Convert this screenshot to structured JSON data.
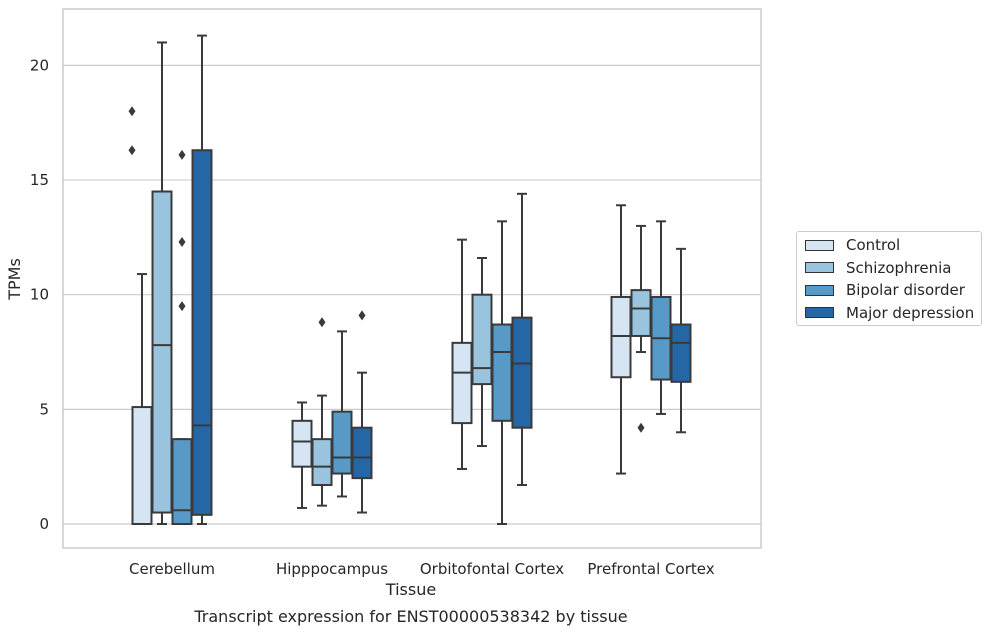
{
  "chart_data": {
    "type": "boxplot",
    "title": "Transcript expression for ENST00000538342 by tissue",
    "xlabel": "Tissue",
    "ylabel": "TPMs",
    "ylim": [
      -1,
      22.5
    ],
    "yticks": [
      0,
      5,
      10,
      15,
      20
    ],
    "grid": true,
    "legend_position": "right",
    "categories": [
      "Cerebellum",
      "Hipppocampus",
      "Orbitofontal Cortex",
      "Prefrontal Cortex"
    ],
    "series": [
      {
        "name": "Control",
        "color": "#d6e5f4",
        "boxes": [
          {
            "whislo": 0,
            "q1": 0,
            "med": 0,
            "q3": 5.1,
            "whishi": 10.9,
            "fliers": []
          },
          {
            "whislo": 0.7,
            "q1": 2.5,
            "med": 3.6,
            "q3": 4.5,
            "whishi": 5.3,
            "fliers": []
          },
          {
            "whislo": 2.4,
            "q1": 4.4,
            "med": 6.6,
            "q3": 7.9,
            "whishi": 12.4,
            "fliers": []
          },
          {
            "whislo": 2.2,
            "q1": 6.4,
            "med": 8.2,
            "q3": 9.9,
            "whishi": 13.9,
            "fliers": []
          }
        ]
      },
      {
        "name": "Schizophrenia",
        "color": "#9ac4de",
        "boxes": [
          {
            "whislo": 0,
            "q1": 0.5,
            "med": 7.8,
            "q3": 14.5,
            "whishi": 21.0,
            "fliers": []
          },
          {
            "whislo": 0.8,
            "q1": 1.7,
            "med": 2.5,
            "q3": 3.7,
            "whishi": 5.6,
            "fliers": [
              8.8
            ]
          },
          {
            "whislo": 3.4,
            "q1": 6.1,
            "med": 6.8,
            "q3": 10.0,
            "whishi": 11.6,
            "fliers": []
          },
          {
            "whislo": 7.5,
            "q1": 8.2,
            "med": 9.4,
            "q3": 10.2,
            "whishi": 13.0,
            "fliers": [
              4.2
            ]
          }
        ]
      },
      {
        "name": "Bipolar disorder",
        "color": "#5799c7",
        "boxes": [
          {
            "whislo": 0,
            "q1": 0,
            "med": 0.6,
            "q3": 3.7,
            "whishi": 3.7,
            "fliers": [
              9.5,
              12.3,
              16.1
            ]
          },
          {
            "whislo": 1.2,
            "q1": 2.2,
            "med": 2.9,
            "q3": 4.9,
            "whishi": 8.4,
            "fliers": []
          },
          {
            "whislo": 0,
            "q1": 4.5,
            "med": 7.5,
            "q3": 8.7,
            "whishi": 13.2,
            "fliers": []
          },
          {
            "whislo": 4.8,
            "q1": 6.3,
            "med": 8.1,
            "q3": 9.9,
            "whishi": 13.2,
            "fliers": []
          }
        ]
      },
      {
        "name": "Major depression",
        "color": "#2466a6",
        "boxes": [
          {
            "whislo": 0,
            "q1": 0.4,
            "med": 4.3,
            "q3": 16.3,
            "whishi": 21.3,
            "fliers": []
          },
          {
            "whislo": 0.5,
            "q1": 2.0,
            "med": 2.9,
            "q3": 4.2,
            "whishi": 6.6,
            "fliers": [
              9.1
            ]
          },
          {
            "whislo": 1.7,
            "q1": 4.2,
            "med": 7.0,
            "q3": 9.0,
            "whishi": 14.4,
            "fliers": []
          },
          {
            "whislo": 4.0,
            "q1": 6.2,
            "med": 7.9,
            "q3": 8.7,
            "whishi": 12.0,
            "fliers": []
          }
        ]
      }
    ],
    "extra_fliers": [
      {
        "series": 0,
        "category": 0,
        "values": [
          16.3,
          18.0
        ]
      }
    ]
  }
}
